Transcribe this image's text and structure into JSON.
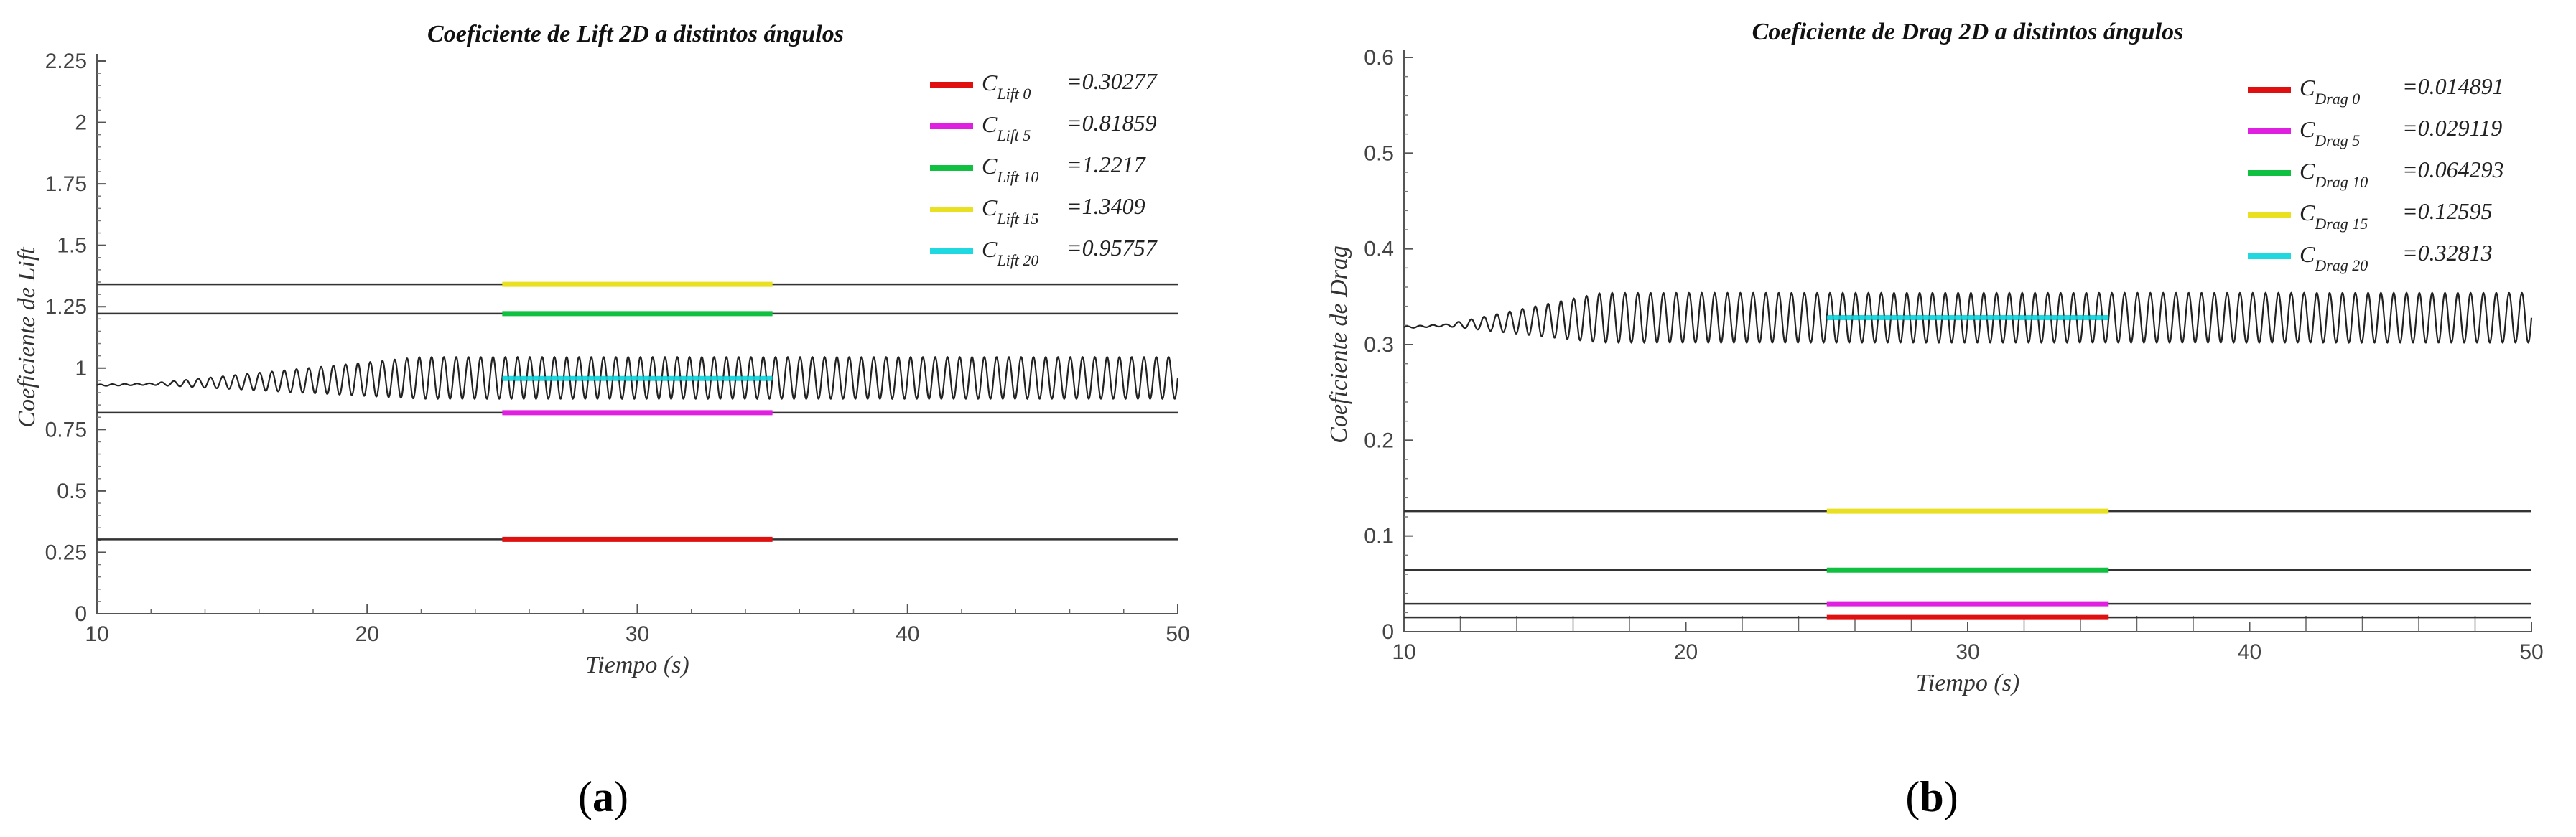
{
  "chart_data": [
    {
      "type": "line",
      "title": "Coeficiente de Lift 2D a distintos ángulos",
      "xlabel": "Tiempo (s)",
      "ylabel": "Coeficiente de Lift",
      "xlim": [
        10,
        50
      ],
      "ylim": [
        0,
        2.25
      ],
      "xticks": [
        "10",
        "20",
        "30",
        "40",
        "50"
      ],
      "yticks": [
        "0",
        "0.25",
        "0.5",
        "0.75",
        "1",
        "1.25",
        "1.5",
        "1.75",
        "2",
        "2.25"
      ],
      "legend_position": "top-right",
      "oscillation": {
        "start": 0.93,
        "center": 0.96,
        "amplitude": 0.085,
        "grow_from": 12,
        "grow_to": 22,
        "freq": 2.2
      },
      "series": [
        {
          "label_main": "C",
          "label_sub": "Lift 0",
          "value_text": "=0.30277",
          "value": 0.30277,
          "color": "#e01010"
        },
        {
          "label_main": "C",
          "label_sub": "Lift 5",
          "value_text": "=0.81859",
          "value": 0.81859,
          "color": "#e020e0"
        },
        {
          "label_main": "C",
          "label_sub": "Lift 10",
          "value_text": "=1.2217",
          "value": 1.2217,
          "color": "#10c040"
        },
        {
          "label_main": "C",
          "label_sub": "Lift 15",
          "value_text": "=1.3409",
          "value": 1.3409,
          "color": "#e8e020"
        },
        {
          "label_main": "C",
          "label_sub": "Lift 20",
          "value_text": "=0.95757",
          "value": 0.95757,
          "color": "#20d8e0"
        }
      ],
      "segment_x": [
        25,
        35
      ],
      "panel_label": {
        "open": "(",
        "letter": "a",
        "close": ")"
      }
    },
    {
      "type": "line",
      "title": "Coeficiente de Drag 2D a distintos ángulos",
      "xlabel": "Tiempo (s)",
      "ylabel": "Coeficiente de Drag",
      "xlim": [
        10,
        50
      ],
      "ylim": [
        0,
        0.6
      ],
      "xticks": [
        "10",
        "20",
        "30",
        "40",
        "50"
      ],
      "yticks": [
        "0",
        "0.1",
        "0.2",
        "0.3",
        "0.4",
        "0.5",
        "0.6"
      ],
      "legend_position": "top-right",
      "oscillation": {
        "start": 0.318,
        "center": 0.328,
        "amplitude": 0.026,
        "grow_from": 11.5,
        "grow_to": 17,
        "freq": 2.2
      },
      "series": [
        {
          "label_main": "C",
          "label_sub": "Drag 0",
          "value_text": "=0.014891",
          "value": 0.014891,
          "color": "#e01010"
        },
        {
          "label_main": "C",
          "label_sub": "Drag 5",
          "value_text": "=0.029119",
          "value": 0.029119,
          "color": "#e020e0"
        },
        {
          "label_main": "C",
          "label_sub": "Drag 10",
          "value_text": "=0.064293",
          "value": 0.064293,
          "color": "#10c040"
        },
        {
          "label_main": "C",
          "label_sub": "Drag 15",
          "value_text": "=0.12595",
          "value": 0.12595,
          "color": "#e8e020"
        },
        {
          "label_main": "C",
          "label_sub": "Drag 20",
          "value_text": "=0.32813",
          "value": 0.32813,
          "color": "#20d8e0"
        }
      ],
      "segment_x": [
        25,
        35
      ],
      "panel_label": {
        "open": "(",
        "letter": "b",
        "close": ")"
      }
    }
  ]
}
